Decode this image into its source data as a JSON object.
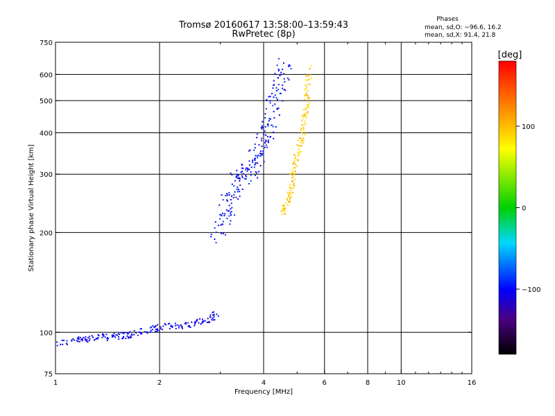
{
  "chart_data": {
    "type": "scatter",
    "title": "Tromsø 20160617 13:58:00–13:59:43",
    "subtitle": "RwPretec (8p)",
    "xlabel": "Frequency [MHz]",
    "ylabel": "Stationary phase Virtual Height [km]",
    "x_scale": "log",
    "y_scale": "log",
    "xlim": [
      1,
      16
    ],
    "ylim": [
      75,
      750
    ],
    "x_ticks": [
      1,
      2,
      4,
      6,
      8,
      10,
      16
    ],
    "x_ticklabels": [
      "1",
      "2",
      "4",
      "6",
      "8",
      "10",
      "16"
    ],
    "x_gridlines": [
      2,
      4,
      6,
      8,
      10
    ],
    "y_ticks": [
      75,
      100,
      200,
      300,
      400,
      500,
      600,
      750
    ],
    "y_ticklabels": [
      "75",
      "100",
      "200",
      "300",
      "400",
      "500",
      "600",
      "750"
    ],
    "y_gridlines": [
      100,
      200,
      300,
      400,
      500,
      600
    ],
    "grid": true,
    "info": {
      "heading": "Phases",
      "line1": "mean, sd,O: −96.6, 16.2",
      "line2": "mean, sd,X:  91.4, 21.8"
    },
    "colorbar": {
      "label": "[deg]",
      "range": [
        -180,
        180
      ],
      "ticks": [
        100,
        0,
        -100
      ],
      "ticklabels": [
        "100",
        "0",
        "−100"
      ]
    },
    "traces": [
      {
        "kind": "O",
        "phase_deg": -105,
        "x": [
          1.0,
          1.15,
          1.2,
          1.3,
          1.4,
          1.5,
          1.6,
          1.7,
          1.9,
          2.0,
          2.2,
          2.4,
          2.6,
          2.8,
          2.9
        ],
        "y": [
          93,
          95,
          96,
          97,
          97,
          98,
          98,
          100,
          102,
          104,
          105,
          106,
          108,
          110,
          115
        ]
      },
      {
        "kind": "O",
        "phase_deg": -100,
        "x": [
          2.9,
          3.0,
          3.1,
          3.2,
          3.3,
          3.4,
          3.5,
          3.6,
          3.7,
          3.8,
          3.9,
          4.0,
          4.1,
          4.2,
          4.3,
          4.4,
          4.5,
          4.6
        ],
        "y": [
          200,
          215,
          230,
          250,
          270,
          290,
          300,
          310,
          320,
          340,
          360,
          390,
          420,
          460,
          500,
          550,
          600,
          640
        ]
      },
      {
        "kind": "X",
        "phase_deg": 95,
        "x": [
          4.5,
          4.6,
          4.7,
          4.8,
          4.85,
          4.9,
          5.0,
          5.1,
          5.2,
          5.25,
          5.3,
          5.35,
          5.4
        ],
        "y": [
          230,
          240,
          255,
          275,
          295,
          320,
          350,
          380,
          420,
          460,
          500,
          560,
          630
        ]
      }
    ]
  }
}
